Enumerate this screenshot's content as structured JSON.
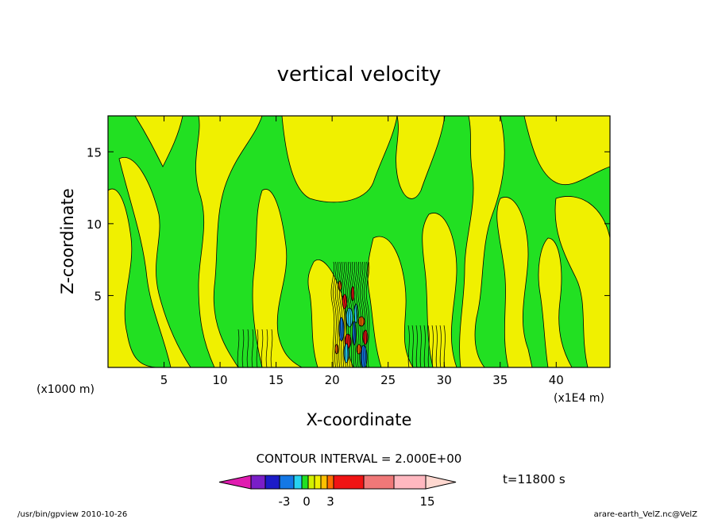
{
  "chart_data": {
    "type": "heatmap",
    "title": "vertical velocity",
    "xlabel": "X-coordinate",
    "ylabel": "Z-coordinate",
    "x_unit_left": "(x1000 m)",
    "x_unit_right": "(x1E4 m)",
    "x_ticks": [
      5,
      10,
      15,
      20,
      25,
      30,
      35,
      40
    ],
    "y_ticks": [
      5,
      10,
      15
    ],
    "xlim": [
      0,
      44.8
    ],
    "ylim": [
      0,
      17.5
    ],
    "contour_interval_text": "CONTOUR INTERVAL = 2.000E+00",
    "time_label": "t=11800 s",
    "colorbar": {
      "colors": [
        "#e01cb0",
        "#7a1ec8",
        "#1c1cc8",
        "#1478e6",
        "#28d2f0",
        "#22e022",
        "#d2f000",
        "#f0f000",
        "#ffc000",
        "#ff6e00",
        "#f01414",
        "#f07878",
        "#ffb8c0",
        "#ffd8d0"
      ],
      "tick_labels": [
        "-3",
        "0",
        "3",
        "15"
      ]
    },
    "footer_left": "/usr/bin/gpview   2010-10-26",
    "footer_right": "arare-earth_VelZ.nc@VelZ"
  }
}
